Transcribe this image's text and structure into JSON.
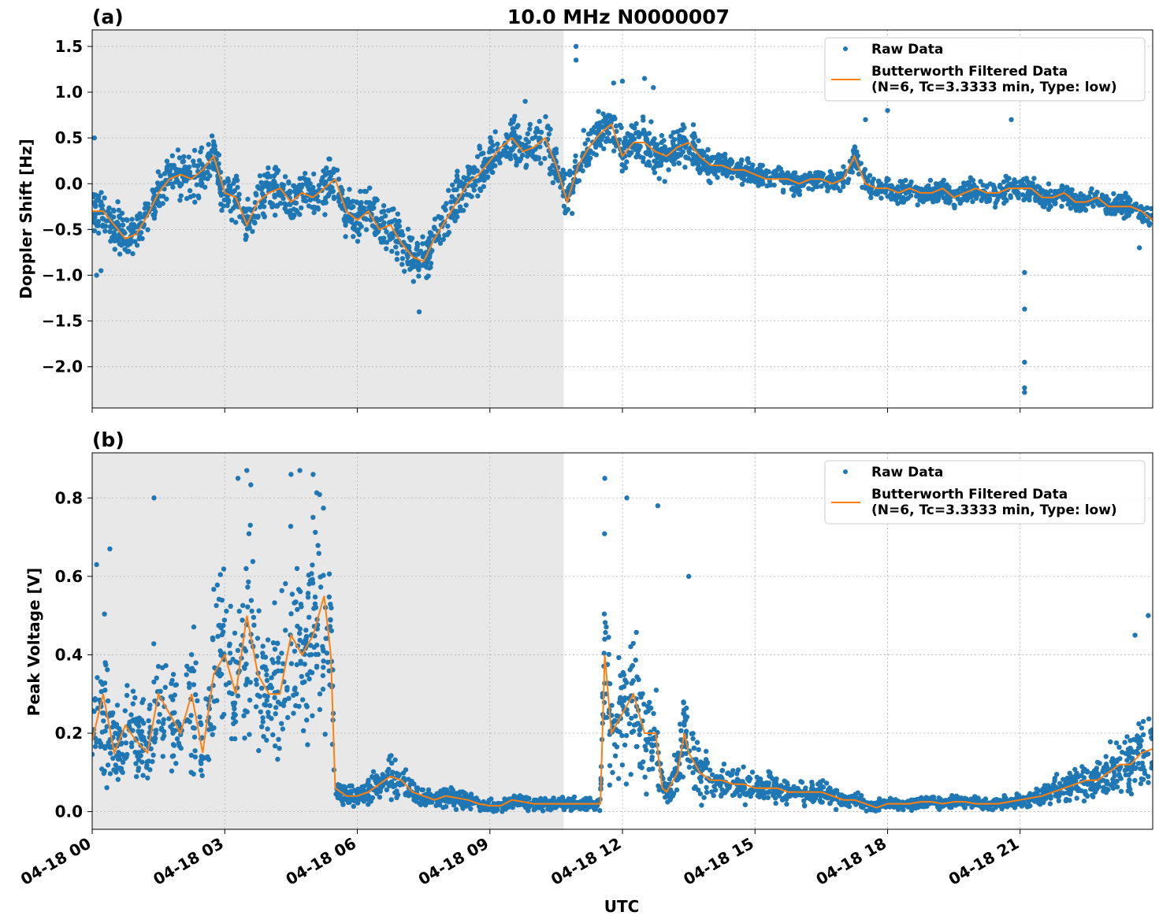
{
  "figure": {
    "title": "10.0 MHz N0000007",
    "xlabel": "UTC"
  },
  "colors": {
    "raw": "#1f77b4",
    "filtered": "#ff7f0e",
    "night_shade": "#e8e8e8",
    "grid": "#b0b0b0"
  },
  "legend": {
    "raw_label": "Raw Data",
    "filtered_label_line1": "Butterworth Filtered Data",
    "filtered_label_line2": "(N=6, Tc=3.3333 min, Type: low)"
  },
  "chart_data": [
    {
      "type": "scatter",
      "panel_label": "(a)",
      "title": "10.0 MHz N0000007",
      "xlabel": "",
      "ylabel": "Doppler Shift [Hz]",
      "x_unit": "hours UTC 2024-04-18",
      "xlim": [
        0,
        24
      ],
      "ylim": [
        -2.45,
        1.68
      ],
      "xticks": [
        0,
        3,
        6,
        9,
        12,
        15,
        18,
        21
      ],
      "yticks": [
        1.5,
        1.0,
        0.5,
        0.0,
        -0.5,
        -1.0,
        -1.5,
        -2.0
      ],
      "ytick_labels": [
        "1.5",
        "1.0",
        "0.5",
        "0.0",
        "−0.5",
        "−1.0",
        "−1.5",
        "−2.0"
      ],
      "grid": true,
      "legend_position": "top-right",
      "shaded_region_x": [
        0,
        10.67
      ],
      "series": [
        {
          "name": "Butterworth Filtered Data\n(N=6, Tc=3.3333 min, Type: low)",
          "kind": "line",
          "x": [
            0,
            0.25,
            0.5,
            0.75,
            1,
            1.25,
            1.5,
            1.75,
            2,
            2.25,
            2.5,
            2.75,
            3,
            3.25,
            3.5,
            3.75,
            4,
            4.25,
            4.5,
            4.75,
            5,
            5.25,
            5.5,
            5.75,
            6,
            6.25,
            6.5,
            6.75,
            7,
            7.25,
            7.5,
            7.75,
            8,
            8.25,
            8.5,
            8.75,
            9,
            9.25,
            9.5,
            9.75,
            10,
            10.25,
            10.5,
            10.75,
            11,
            11.25,
            11.5,
            11.75,
            12,
            12.25,
            12.5,
            12.75,
            13,
            13.25,
            13.5,
            13.75,
            14,
            14.25,
            14.5,
            14.75,
            15,
            15.25,
            15.5,
            15.75,
            16,
            16.25,
            16.5,
            16.75,
            17,
            17.25,
            17.5,
            17.75,
            18,
            18.25,
            18.5,
            18.75,
            19,
            19.25,
            19.5,
            19.75,
            20,
            20.25,
            20.5,
            20.75,
            21,
            21.25,
            21.5,
            21.75,
            22,
            22.25,
            22.5,
            22.75,
            23,
            23.25,
            23.5,
            23.75,
            24
          ],
          "y": [
            -0.3,
            -0.3,
            -0.45,
            -0.6,
            -0.55,
            -0.35,
            -0.1,
            0.05,
            0.1,
            0.05,
            0.15,
            0.3,
            -0.1,
            -0.15,
            -0.45,
            -0.2,
            -0.1,
            -0.05,
            -0.2,
            -0.1,
            -0.15,
            -0.05,
            0.05,
            -0.3,
            -0.4,
            -0.3,
            -0.5,
            -0.45,
            -0.65,
            -0.8,
            -0.85,
            -0.6,
            -0.4,
            -0.2,
            0.0,
            0.1,
            0.25,
            0.4,
            0.5,
            0.35,
            0.4,
            0.5,
            0.2,
            -0.2,
            0.2,
            0.4,
            0.55,
            0.65,
            0.3,
            0.45,
            0.45,
            0.35,
            0.3,
            0.4,
            0.45,
            0.3,
            0.2,
            0.2,
            0.15,
            0.15,
            0.1,
            0.05,
            0.05,
            0.05,
            0.0,
            0.05,
            0.05,
            0.0,
            0.05,
            0.3,
            0.0,
            -0.05,
            -0.05,
            -0.1,
            -0.05,
            -0.1,
            -0.1,
            -0.05,
            -0.15,
            -0.1,
            -0.05,
            -0.1,
            -0.1,
            -0.05,
            -0.05,
            -0.05,
            -0.15,
            -0.15,
            -0.1,
            -0.2,
            -0.2,
            -0.15,
            -0.25,
            -0.25,
            -0.25,
            -0.3,
            -0.4
          ]
        },
        {
          "name": "Raw Data",
          "kind": "points",
          "x": [
            10.95,
            10.95,
            12.0,
            11.8,
            12.5,
            12.7,
            17.5,
            18.0,
            20.8,
            21.1,
            21.1,
            21.1,
            21.1,
            21.1,
            0.1,
            0.2,
            7.4,
            9.8,
            0.05,
            23.7
          ],
          "y": [
            1.5,
            1.35,
            1.12,
            1.1,
            1.15,
            1.05,
            0.7,
            0.8,
            0.7,
            -0.97,
            -1.37,
            -1.95,
            -2.23,
            -2.28,
            -1.0,
            -0.95,
            -1.4,
            0.9,
            0.5,
            -0.7
          ]
        }
      ]
    },
    {
      "type": "scatter",
      "panel_label": "(b)",
      "xlabel": "UTC",
      "ylabel": "Peak Voltage [V]",
      "x_unit": "hours UTC 2024-04-18",
      "xlim": [
        0,
        24
      ],
      "ylim": [
        -0.045,
        0.915
      ],
      "xticks": [
        0,
        3,
        6,
        9,
        12,
        15,
        18,
        21
      ],
      "xtick_labels": [
        "04-18 00",
        "04-18 03",
        "04-18 06",
        "04-18 09",
        "04-18 12",
        "04-18 15",
        "04-18 18",
        "04-18 21"
      ],
      "yticks": [
        0.0,
        0.2,
        0.4,
        0.6,
        0.8
      ],
      "ytick_labels": [
        "0.0",
        "0.2",
        "0.4",
        "0.6",
        "0.8"
      ],
      "grid": true,
      "legend_position": "top-right",
      "shaded_region_x": [
        0,
        10.67
      ],
      "series": [
        {
          "name": "Butterworth Filtered Data\n(N=6, Tc=3.3333 min, Type: low)",
          "kind": "line",
          "x": [
            0,
            0.25,
            0.5,
            0.75,
            1,
            1.25,
            1.5,
            1.75,
            2,
            2.25,
            2.5,
            2.75,
            3,
            3.25,
            3.5,
            3.75,
            4,
            4.25,
            4.5,
            4.75,
            5,
            5.25,
            5.4,
            5.5,
            5.75,
            6,
            6.25,
            6.5,
            6.75,
            7,
            7.25,
            7.5,
            7.75,
            8,
            8.25,
            8.5,
            8.75,
            9,
            9.25,
            9.5,
            9.75,
            10,
            10.25,
            10.5,
            10.75,
            11,
            11.25,
            11.5,
            11.6,
            11.75,
            12,
            12.25,
            12.5,
            12.75,
            12.9,
            13,
            13.25,
            13.4,
            13.5,
            13.75,
            14,
            14.25,
            14.5,
            14.75,
            15,
            15.25,
            15.5,
            15.75,
            16,
            16.25,
            16.5,
            16.75,
            17,
            17.25,
            17.5,
            17.75,
            18,
            18.25,
            18.5,
            18.75,
            19,
            19.25,
            19.5,
            19.75,
            20,
            20.25,
            20.5,
            20.75,
            21,
            21.25,
            21.5,
            21.75,
            22,
            22.25,
            22.5,
            22.75,
            23,
            23.25,
            23.5,
            23.75,
            24
          ],
          "y": [
            0.18,
            0.3,
            0.15,
            0.22,
            0.18,
            0.15,
            0.3,
            0.25,
            0.2,
            0.3,
            0.15,
            0.35,
            0.4,
            0.3,
            0.5,
            0.35,
            0.3,
            0.3,
            0.45,
            0.4,
            0.45,
            0.55,
            0.4,
            0.06,
            0.04,
            0.04,
            0.05,
            0.07,
            0.09,
            0.08,
            0.05,
            0.04,
            0.03,
            0.04,
            0.035,
            0.03,
            0.02,
            0.015,
            0.015,
            0.03,
            0.025,
            0.02,
            0.02,
            0.02,
            0.02,
            0.02,
            0.02,
            0.02,
            0.4,
            0.2,
            0.25,
            0.3,
            0.2,
            0.2,
            0.06,
            0.05,
            0.1,
            0.2,
            0.15,
            0.1,
            0.08,
            0.08,
            0.07,
            0.07,
            0.06,
            0.06,
            0.06,
            0.05,
            0.05,
            0.05,
            0.05,
            0.04,
            0.03,
            0.03,
            0.02,
            0.01,
            0.02,
            0.02,
            0.02,
            0.025,
            0.025,
            0.02,
            0.025,
            0.025,
            0.02,
            0.02,
            0.02,
            0.025,
            0.03,
            0.035,
            0.04,
            0.05,
            0.06,
            0.07,
            0.08,
            0.08,
            0.1,
            0.12,
            0.12,
            0.15,
            0.16
          ]
        },
        {
          "name": "Raw Data",
          "kind": "points",
          "x": [
            3.5,
            4.5,
            4.7,
            3.3,
            5.0,
            11.6,
            12.1,
            12.8,
            13.5,
            0.4,
            1.4,
            23.6,
            23.9,
            0.1
          ],
          "y": [
            0.87,
            0.86,
            0.87,
            0.85,
            0.86,
            0.85,
            0.8,
            0.78,
            0.6,
            0.67,
            0.8,
            0.45,
            0.5,
            0.63
          ]
        }
      ]
    }
  ]
}
